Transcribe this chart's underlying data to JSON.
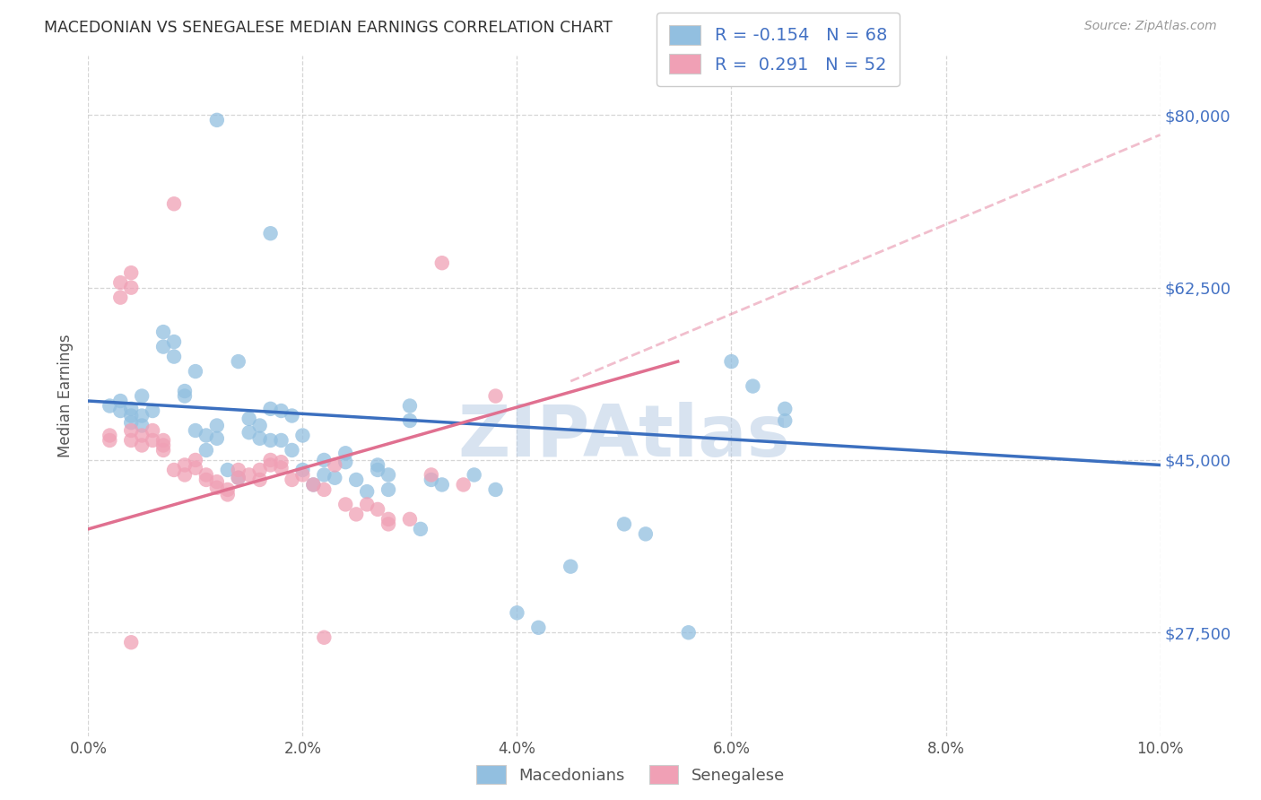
{
  "title": "MACEDONIAN VS SENEGALESE MEDIAN EARNINGS CORRELATION CHART",
  "source": "Source: ZipAtlas.com",
  "ylabel": "Median Earnings",
  "yticks": [
    27500,
    45000,
    62500,
    80000
  ],
  "ytick_labels": [
    "$27,500",
    "$45,000",
    "$62,500",
    "$80,000"
  ],
  "xmin": 0.0,
  "xmax": 0.1,
  "ymin": 17000,
  "ymax": 86000,
  "blue_color": "#92BFE0",
  "pink_color": "#F0A0B5",
  "blue_line_color": "#3B6FBF",
  "pink_line_color": "#E07090",
  "watermark": "ZIPAtlas",
  "macedonian_points": [
    [
      0.002,
      50500
    ],
    [
      0.003,
      51000
    ],
    [
      0.003,
      50000
    ],
    [
      0.004,
      50200
    ],
    [
      0.004,
      49500
    ],
    [
      0.004,
      48800
    ],
    [
      0.005,
      49500
    ],
    [
      0.005,
      51500
    ],
    [
      0.005,
      48500
    ],
    [
      0.006,
      50000
    ],
    [
      0.007,
      58000
    ],
    [
      0.007,
      56500
    ],
    [
      0.008,
      57000
    ],
    [
      0.008,
      55500
    ],
    [
      0.009,
      52000
    ],
    [
      0.009,
      51500
    ],
    [
      0.01,
      54000
    ],
    [
      0.01,
      48000
    ],
    [
      0.011,
      47500
    ],
    [
      0.011,
      46000
    ],
    [
      0.012,
      48500
    ],
    [
      0.012,
      47200
    ],
    [
      0.013,
      44000
    ],
    [
      0.014,
      55000
    ],
    [
      0.014,
      43200
    ],
    [
      0.015,
      49200
    ],
    [
      0.015,
      47800
    ],
    [
      0.016,
      48500
    ],
    [
      0.016,
      47200
    ],
    [
      0.017,
      50200
    ],
    [
      0.017,
      47000
    ],
    [
      0.018,
      50000
    ],
    [
      0.018,
      47000
    ],
    [
      0.019,
      46000
    ],
    [
      0.019,
      49500
    ],
    [
      0.02,
      47500
    ],
    [
      0.02,
      44000
    ],
    [
      0.021,
      42500
    ],
    [
      0.022,
      45000
    ],
    [
      0.022,
      43500
    ],
    [
      0.023,
      43200
    ],
    [
      0.024,
      44800
    ],
    [
      0.024,
      45700
    ],
    [
      0.025,
      43000
    ],
    [
      0.026,
      41800
    ],
    [
      0.027,
      44500
    ],
    [
      0.027,
      44000
    ],
    [
      0.028,
      43500
    ],
    [
      0.028,
      42000
    ],
    [
      0.012,
      79500
    ],
    [
      0.03,
      50500
    ],
    [
      0.03,
      49000
    ],
    [
      0.031,
      38000
    ],
    [
      0.032,
      43000
    ],
    [
      0.033,
      42500
    ],
    [
      0.036,
      43500
    ],
    [
      0.038,
      42000
    ],
    [
      0.04,
      29500
    ],
    [
      0.042,
      28000
    ],
    [
      0.045,
      34200
    ],
    [
      0.05,
      38500
    ],
    [
      0.052,
      37500
    ],
    [
      0.056,
      27500
    ],
    [
      0.06,
      55000
    ],
    [
      0.062,
      52500
    ],
    [
      0.065,
      50200
    ],
    [
      0.065,
      49000
    ],
    [
      0.017,
      68000
    ]
  ],
  "senegalese_points": [
    [
      0.002,
      47500
    ],
    [
      0.002,
      47000
    ],
    [
      0.003,
      63000
    ],
    [
      0.003,
      61500
    ],
    [
      0.004,
      64000
    ],
    [
      0.004,
      62500
    ],
    [
      0.004,
      48000
    ],
    [
      0.004,
      47000
    ],
    [
      0.005,
      47500
    ],
    [
      0.005,
      46500
    ],
    [
      0.006,
      48000
    ],
    [
      0.006,
      47000
    ],
    [
      0.007,
      46500
    ],
    [
      0.007,
      47000
    ],
    [
      0.007,
      46000
    ],
    [
      0.008,
      71000
    ],
    [
      0.008,
      44000
    ],
    [
      0.009,
      43500
    ],
    [
      0.009,
      44500
    ],
    [
      0.01,
      45000
    ],
    [
      0.01,
      44200
    ],
    [
      0.011,
      43500
    ],
    [
      0.011,
      43000
    ],
    [
      0.012,
      42200
    ],
    [
      0.012,
      42800
    ],
    [
      0.013,
      42000
    ],
    [
      0.013,
      41500
    ],
    [
      0.014,
      44000
    ],
    [
      0.014,
      43200
    ],
    [
      0.015,
      43500
    ],
    [
      0.016,
      44000
    ],
    [
      0.016,
      43000
    ],
    [
      0.017,
      44500
    ],
    [
      0.017,
      45000
    ],
    [
      0.018,
      44200
    ],
    [
      0.018,
      44800
    ],
    [
      0.019,
      43000
    ],
    [
      0.02,
      43500
    ],
    [
      0.021,
      42500
    ],
    [
      0.022,
      42000
    ],
    [
      0.023,
      44500
    ],
    [
      0.024,
      40500
    ],
    [
      0.025,
      39500
    ],
    [
      0.026,
      40500
    ],
    [
      0.027,
      40000
    ],
    [
      0.028,
      38500
    ],
    [
      0.028,
      39000
    ],
    [
      0.03,
      39000
    ],
    [
      0.032,
      43500
    ],
    [
      0.033,
      65000
    ],
    [
      0.004,
      26500
    ],
    [
      0.022,
      27000
    ],
    [
      0.035,
      42500
    ],
    [
      0.038,
      51500
    ]
  ],
  "blue_trend": [
    0.0,
    0.1,
    51000,
    44500
  ],
  "pink_trend_solid": [
    0.0,
    0.055,
    38000,
    55000
  ],
  "pink_trend_dashed": [
    0.045,
    0.1,
    53000,
    78000
  ]
}
